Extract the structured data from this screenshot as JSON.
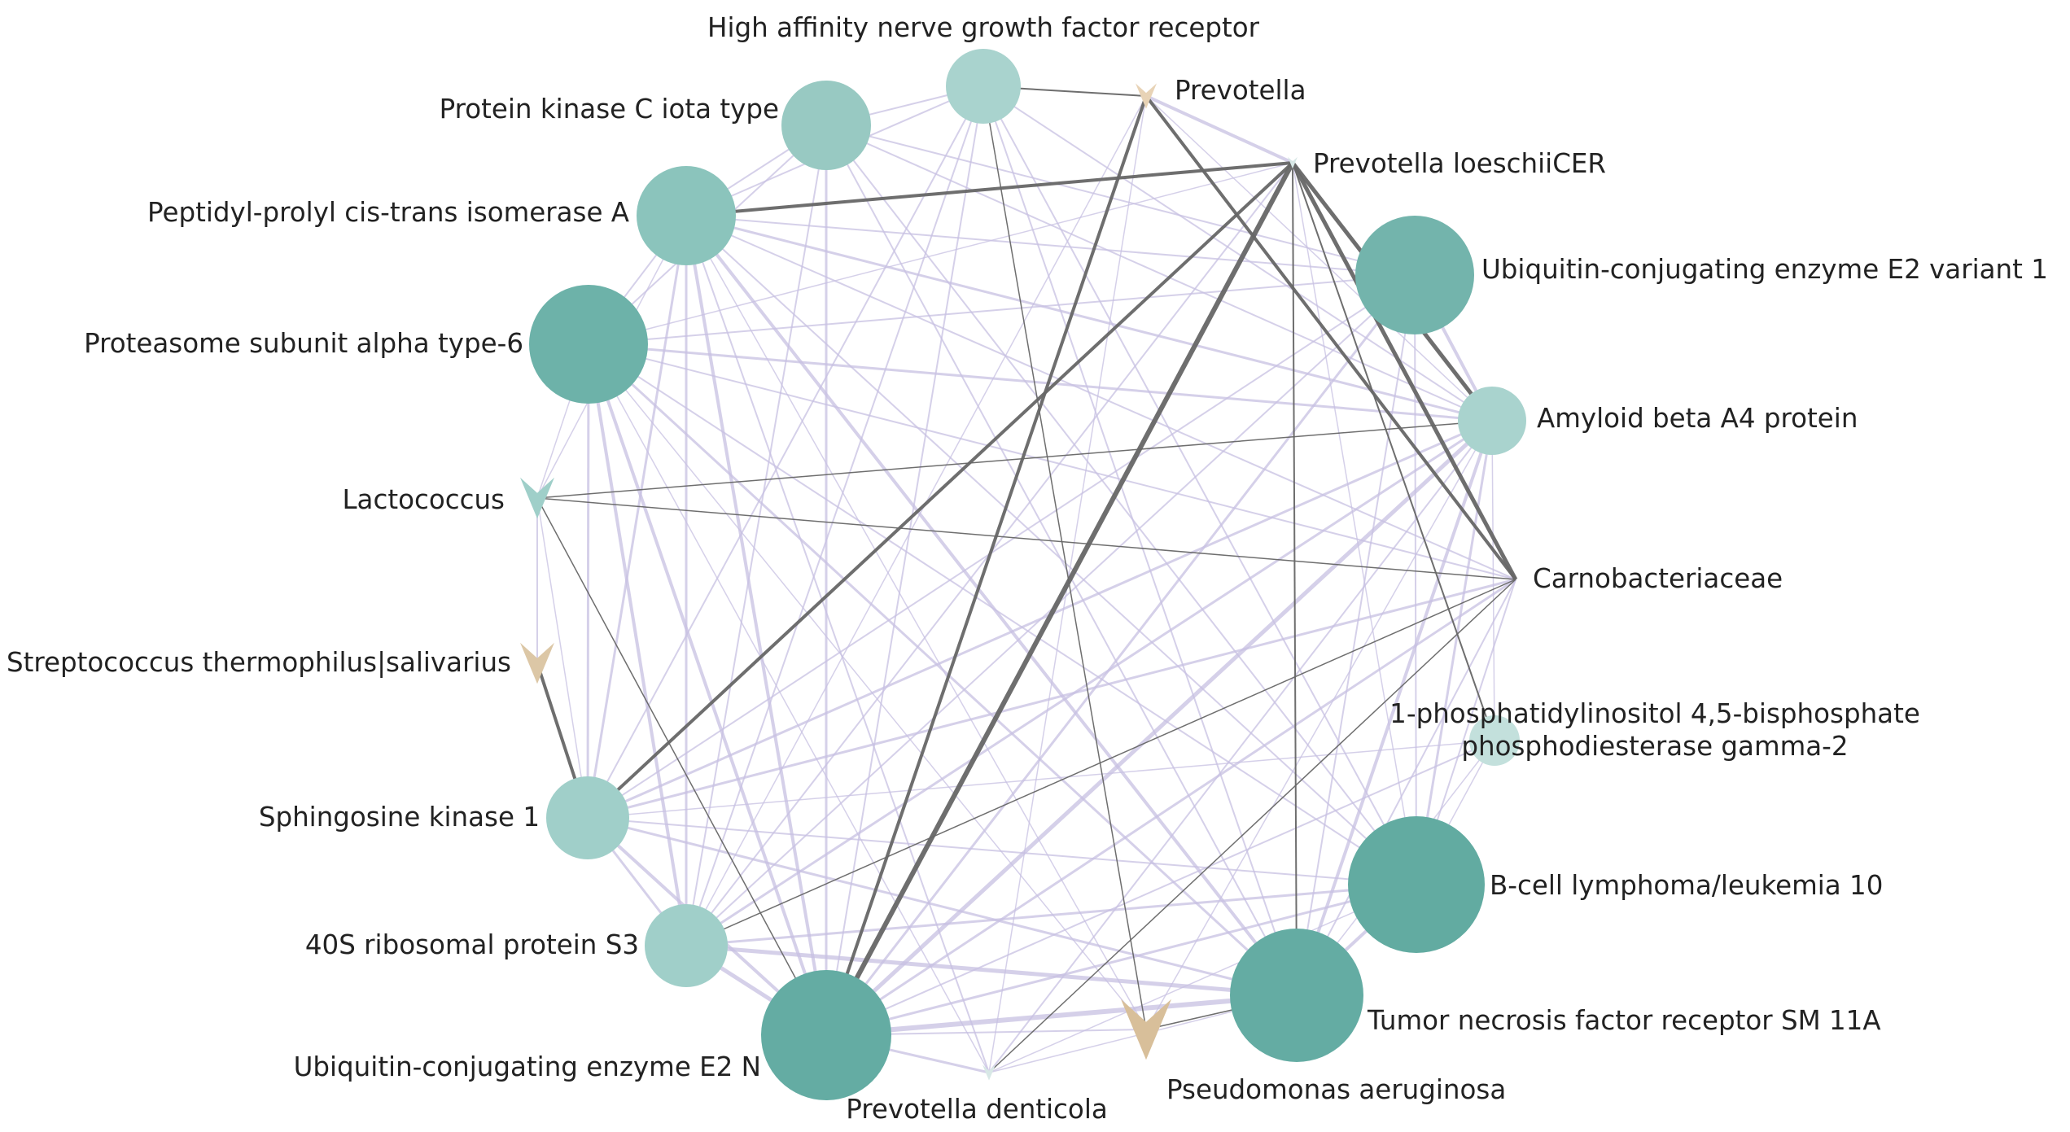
{
  "network": {
    "colors": {
      "background": "#ffffff",
      "protein_node_light": "#a9d3ce",
      "protein_node_dark": "#62aba1",
      "microbe_beige": "#d8bf9a",
      "microbe_teal": "#9fcfc9",
      "microbe_pale": "#d8e8e6",
      "edge_purple": "#c7c0e2",
      "edge_gray": "#666666",
      "label": "#222222"
    },
    "nodes": [
      {
        "id": "high_affinity",
        "label": "High affinity nerve growth factor receptor",
        "type": "protein",
        "size": 0.25,
        "color": "#a9d3ce"
      },
      {
        "id": "prevotella",
        "label": "Prevotella",
        "type": "microbe",
        "size": 0.15,
        "color": "#e8d3b6"
      },
      {
        "id": "prevotella_loeschii",
        "label": "Prevotella loeschiiCER",
        "type": "microbe",
        "size": 0.05,
        "color": "#d8e8e6"
      },
      {
        "id": "ube2v1",
        "label": "Ubiquitin-conjugating enzyme E2 variant 1",
        "type": "protein",
        "size": 0.8,
        "color": "#73b4ac"
      },
      {
        "id": "amyloid",
        "label": "Amyloid beta A4 protein",
        "type": "protein",
        "size": 0.2,
        "color": "#a9d3ce"
      },
      {
        "id": "carnobacteriaceae",
        "label": "Carnobacteriaceae",
        "type": "microbe",
        "size": 0.0,
        "color": "#ffffff"
      },
      {
        "id": "plcg2",
        "label": "1-phosphatidylinositol 4,5-bisphosphate phosphodiesterase gamma-2",
        "type": "protein",
        "size": 0.1,
        "color": "#c3e0dc"
      },
      {
        "id": "bcl10",
        "label": "B-cell lymphoma/leukemia 10",
        "type": "protein",
        "size": 1.0,
        "color": "#62aba1"
      },
      {
        "id": "tnfr",
        "label": "Tumor necrosis factor receptor SM 11A",
        "type": "protein",
        "size": 0.95,
        "color": "#64aca3"
      },
      {
        "id": "pseudomonas",
        "label": "Pseudomonas aeruginosa",
        "type": "microbe",
        "size": 0.9,
        "color": "#d8bf9a"
      },
      {
        "id": "prevotella_denticola",
        "label": "Prevotella denticola",
        "type": "microbe",
        "size": 0.05,
        "color": "#d8e8e6"
      },
      {
        "id": "ube2n",
        "label": "Ubiquitin-conjugating enzyme E2 N",
        "type": "protein",
        "size": 0.9,
        "color": "#64aca3"
      },
      {
        "id": "rps3",
        "label": "40S ribosomal protein S3",
        "type": "protein",
        "size": 0.35,
        "color": "#a0cfc9"
      },
      {
        "id": "sphk1",
        "label": "Sphingosine kinase 1",
        "type": "protein",
        "size": 0.35,
        "color": "#a0cfc9"
      },
      {
        "id": "streptococcus",
        "label": "Streptococcus thermophilus|salivarius",
        "type": "microbe",
        "size": 0.45,
        "color": "#dcc7a6"
      },
      {
        "id": "lactococcus",
        "label": "Lactococcus",
        "type": "microbe",
        "size": 0.45,
        "color": "#9fcfc9"
      },
      {
        "id": "psma6",
        "label": "Proteasome subunit alpha type-6",
        "type": "protein",
        "size": 0.75,
        "color": "#6db2a9"
      },
      {
        "id": "ppia",
        "label": "Peptidyl-prolyl cis-trans isomerase A",
        "type": "protein",
        "size": 0.5,
        "color": "#8bc4bc"
      },
      {
        "id": "prkci",
        "label": "Protein kinase C iota type",
        "type": "protein",
        "size": 0.4,
        "color": "#98c9c2"
      }
    ],
    "edges": [
      [
        "high_affinity",
        "prevotella",
        "gray",
        2
      ],
      [
        "prevotella",
        "ube2n",
        "gray",
        4
      ],
      [
        "prevotella",
        "carnobacteriaceae",
        "gray",
        4
      ],
      [
        "prevotella_loeschii",
        "ppia",
        "gray",
        4
      ],
      [
        "prevotella_loeschii",
        "sphk1",
        "gray",
        4
      ],
      [
        "prevotella_loeschii",
        "ube2n",
        "gray",
        6
      ],
      [
        "prevotella_loeschii",
        "amyloid",
        "gray",
        5
      ],
      [
        "prevotella_loeschii",
        "carnobacteriaceae",
        "gray",
        5
      ],
      [
        "prevotella_loeschii",
        "plcg2",
        "gray",
        2
      ],
      [
        "prevotella_loeschii",
        "tnfr",
        "gray",
        2
      ],
      [
        "sphk1",
        "streptococcus",
        "gray",
        4
      ],
      [
        "lactococcus",
        "amyloid",
        "gray",
        1.5
      ],
      [
        "lactococcus",
        "carnobacteriaceae",
        "gray",
        1.5
      ],
      [
        "lactococcus",
        "ube2n",
        "gray",
        1.5
      ],
      [
        "high_affinity",
        "pseudomonas",
        "gray",
        1.5
      ],
      [
        "carnobacteriaceae",
        "prevotella_denticola",
        "gray",
        1.5
      ],
      [
        "carnobacteriaceae",
        "rps3",
        "gray",
        1.5
      ],
      [
        "pseudomonas",
        "tnfr",
        "gray",
        1.5
      ],
      [
        "prevotella",
        "prevotella_loeschii",
        "purple",
        4
      ],
      [
        "ube2v1",
        "amyloid",
        "purple",
        4
      ],
      [
        "ube2v1",
        "ube2n",
        "purple",
        3
      ],
      [
        "ube2v1",
        "rps3",
        "purple",
        2
      ],
      [
        "ube2v1",
        "sphk1",
        "purple",
        2
      ],
      [
        "ube2v1",
        "psma6",
        "purple",
        2
      ],
      [
        "ube2v1",
        "ppia",
        "purple",
        2
      ],
      [
        "ube2v1",
        "prkci",
        "purple",
        2
      ],
      [
        "ube2v1",
        "tnfr",
        "purple",
        2
      ],
      [
        "ube2v1",
        "bcl10",
        "purple",
        2
      ],
      [
        "amyloid",
        "ube2n",
        "purple",
        5
      ],
      [
        "amyloid",
        "tnfr",
        "purple",
        4
      ],
      [
        "amyloid",
        "bcl10",
        "purple",
        3
      ],
      [
        "amyloid",
        "rps3",
        "purple",
        3
      ],
      [
        "amyloid",
        "sphk1",
        "purple",
        3
      ],
      [
        "amyloid",
        "psma6",
        "purple",
        3
      ],
      [
        "amyloid",
        "ppia",
        "purple",
        3
      ],
      [
        "amyloid",
        "prkci",
        "purple",
        2
      ],
      [
        "amyloid",
        "high_affinity",
        "purple",
        2
      ],
      [
        "bcl10",
        "tnfr",
        "purple",
        4
      ],
      [
        "bcl10",
        "ube2n",
        "purple",
        3
      ],
      [
        "bcl10",
        "rps3",
        "purple",
        3
      ],
      [
        "bcl10",
        "sphk1",
        "purple",
        2
      ],
      [
        "bcl10",
        "psma6",
        "purple",
        2
      ],
      [
        "bcl10",
        "ppia",
        "purple",
        2
      ],
      [
        "bcl10",
        "prkci",
        "purple",
        2
      ],
      [
        "tnfr",
        "ube2n",
        "purple",
        6
      ],
      [
        "tnfr",
        "rps3",
        "purple",
        5
      ],
      [
        "tnfr",
        "sphk1",
        "purple",
        3
      ],
      [
        "tnfr",
        "psma6",
        "purple",
        3
      ],
      [
        "tnfr",
        "ppia",
        "purple",
        4
      ],
      [
        "tnfr",
        "prkci",
        "purple",
        2
      ],
      [
        "ube2n",
        "rps3",
        "purple",
        5
      ],
      [
        "ube2n",
        "sphk1",
        "purple",
        4
      ],
      [
        "ube2n",
        "psma6",
        "purple",
        4
      ],
      [
        "ube2n",
        "ppia",
        "purple",
        4
      ],
      [
        "ube2n",
        "prkci",
        "purple",
        3
      ],
      [
        "ube2n",
        "high_affinity",
        "purple",
        2
      ],
      [
        "ube2n",
        "prevotella_denticola",
        "purple",
        3
      ],
      [
        "ube2n",
        "carnobacteriaceae",
        "purple",
        3
      ],
      [
        "rps3",
        "sphk1",
        "purple",
        3
      ],
      [
        "rps3",
        "psma6",
        "purple",
        4
      ],
      [
        "rps3",
        "ppia",
        "purple",
        3
      ],
      [
        "rps3",
        "prkci",
        "purple",
        2
      ],
      [
        "sphk1",
        "psma6",
        "purple",
        3
      ],
      [
        "sphk1",
        "ppia",
        "purple",
        3
      ],
      [
        "sphk1",
        "carnobacteriaceae",
        "purple",
        3
      ],
      [
        "psma6",
        "ppia",
        "purple",
        2
      ],
      [
        "psma6",
        "prkci",
        "purple",
        2
      ],
      [
        "ppia",
        "prkci",
        "purple",
        2
      ],
      [
        "ppia",
        "high_affinity",
        "purple",
        2
      ],
      [
        "prkci",
        "high_affinity",
        "purple",
        2
      ],
      [
        "high_affinity",
        "sphk1",
        "purple",
        2
      ],
      [
        "high_affinity",
        "rps3",
        "purple",
        2
      ],
      [
        "high_affinity",
        "tnfr",
        "purple",
        2
      ],
      [
        "high_affinity",
        "bcl10",
        "purple",
        2
      ],
      [
        "prevotella_denticola",
        "amyloid",
        "purple",
        2
      ],
      [
        "prevotella_denticola",
        "ppia",
        "purple",
        2
      ],
      [
        "prevotella_denticola",
        "psma6",
        "purple",
        1.5
      ],
      [
        "prevotella_denticola",
        "bcl10",
        "purple",
        1.5
      ],
      [
        "prevotella_denticola",
        "tnfr",
        "purple",
        1.5
      ],
      [
        "prevotella_denticola",
        "prevotella",
        "purple",
        1.5
      ],
      [
        "lactococcus",
        "streptococcus",
        "purple",
        2
      ],
      [
        "lactococcus",
        "psma6",
        "purple",
        1.5
      ],
      [
        "lactococcus",
        "ppia",
        "purple",
        1.5
      ],
      [
        "lactococcus",
        "sphk1",
        "purple",
        1.5
      ],
      [
        "carnobacteriaceae",
        "ppia",
        "purple",
        2
      ],
      [
        "carnobacteriaceae",
        "psma6",
        "purple",
        2
      ],
      [
        "carnobacteriaceae",
        "tnfr",
        "purple",
        2
      ],
      [
        "carnobacteriaceae",
        "bcl10",
        "purple",
        2
      ],
      [
        "plcg2",
        "ube2n",
        "purple",
        2
      ],
      [
        "plcg2",
        "tnfr",
        "purple",
        1.5
      ],
      [
        "plcg2",
        "sphk1",
        "purple",
        1.5
      ],
      [
        "plcg2",
        "amyloid",
        "purple",
        1.5
      ],
      [
        "plcg2",
        "bcl10",
        "purple",
        1.5
      ],
      [
        "pseudomonas",
        "ube2n",
        "purple",
        2
      ],
      [
        "pseudomonas",
        "ppia",
        "purple",
        1.5
      ],
      [
        "pseudomonas",
        "psma6",
        "purple",
        1.5
      ],
      [
        "pseudomonas",
        "amyloid",
        "purple",
        1.5
      ],
      [
        "prevotella_loeschii",
        "rps3",
        "purple",
        2
      ],
      [
        "prevotella_loeschii",
        "psma6",
        "purple",
        1.5
      ],
      [
        "prevotella_loeschii",
        "bcl10",
        "purple",
        1.5
      ],
      [
        "prevotella",
        "rps3",
        "purple",
        1.5
      ],
      [
        "prevotella",
        "amyloid",
        "purple",
        1.5
      ]
    ]
  }
}
